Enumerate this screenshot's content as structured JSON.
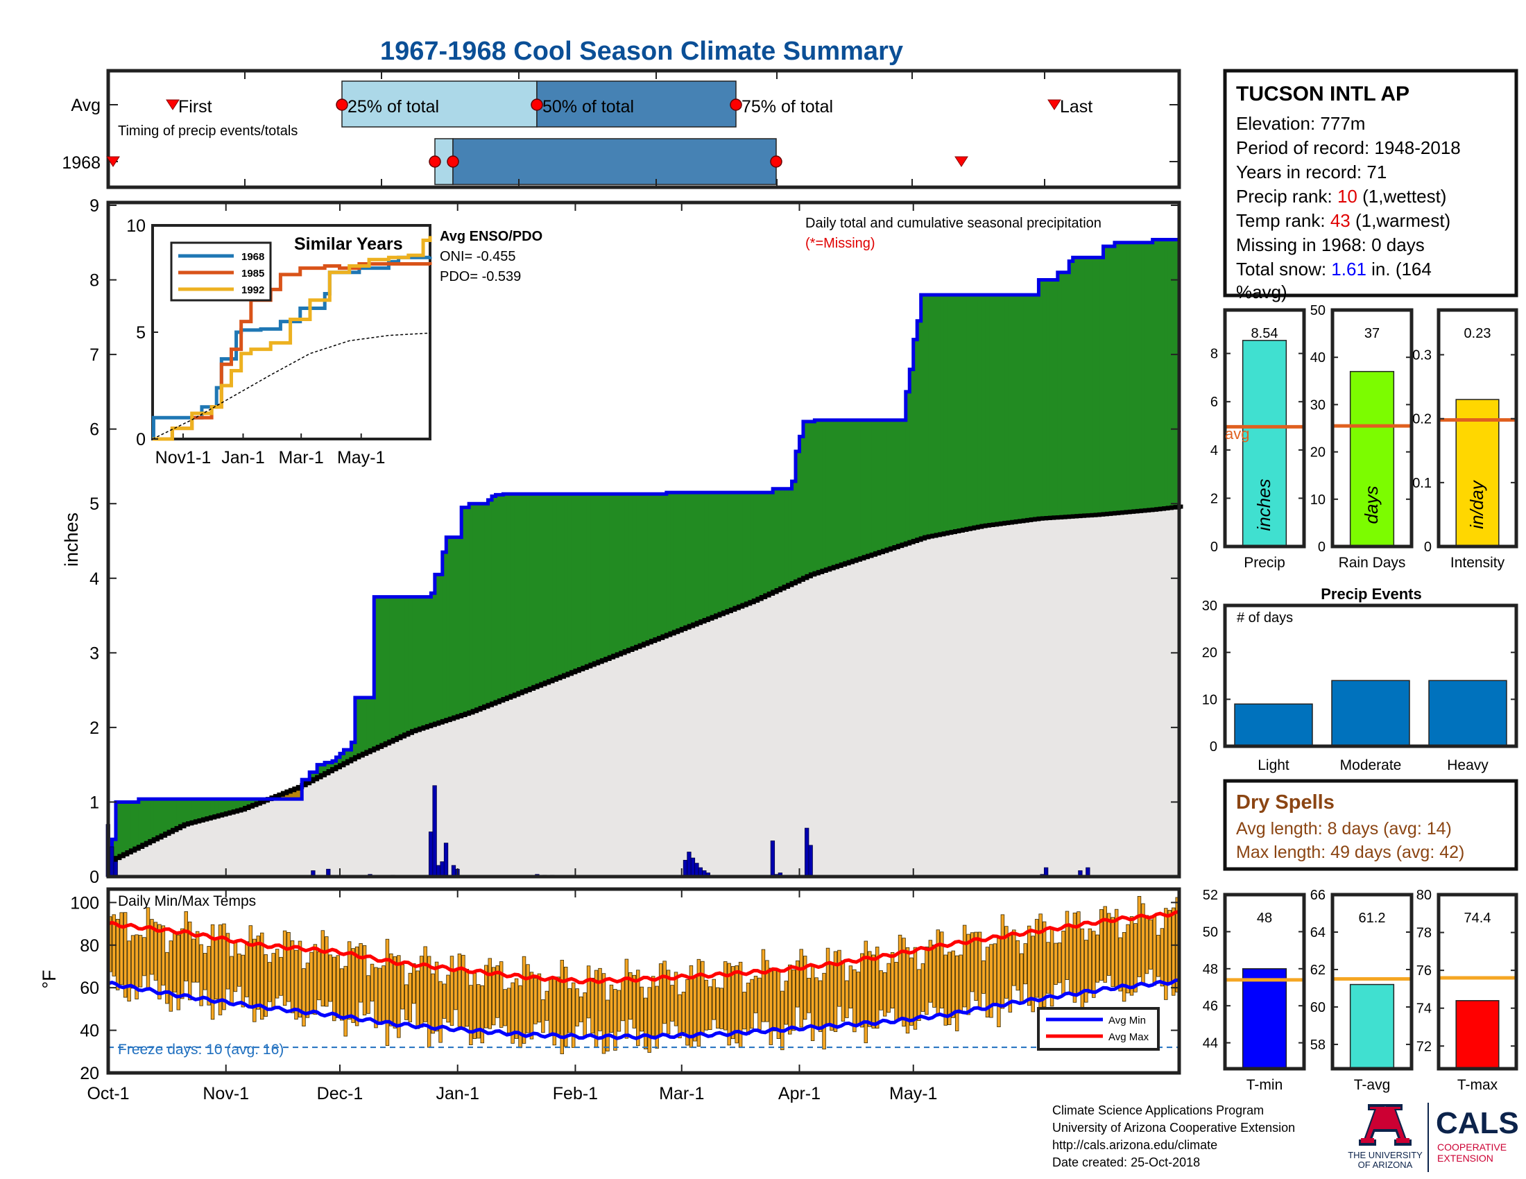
{
  "title": "1967-1968 Cool Season Climate Summary",
  "timing": {
    "row_labels": [
      "Avg",
      "1968"
    ],
    "first_label": "First",
    "last_label": "Last",
    "caption": "Timing of precip events/totals",
    "pct_labels": [
      "25% of total",
      "50% of total",
      "75% of total"
    ]
  },
  "station": {
    "name": "TUCSON INTL AP",
    "elevation": "Elevation: 777m",
    "period": "Period of record: 1948-2018",
    "years": "Years in record: 71",
    "precip_rank_label": "Precip rank: ",
    "precip_rank_value": "10",
    "precip_rank_note": " (1,wettest)",
    "temp_rank_label": "Temp rank: ",
    "temp_rank_value": "43",
    "temp_rank_note": " (1,warmest)",
    "missing": "Missing in 1968: 0 days",
    "snow_label": "Total snow: ",
    "snow_value": "1.61",
    "snow_note": " in. (164",
    "snow_note2": "%avg)"
  },
  "precip_main": {
    "ylabel": "inches",
    "note1": "Daily total and cumulative seasonal precipitation",
    "note2": "(*=Missing)",
    "enso_title": "Avg ENSO/PDO",
    "oni": "ONI= -0.455",
    "pdo": "PDO= -0.539"
  },
  "similar": {
    "title": "Similar Years",
    "legend": [
      "1968",
      "1985",
      "1992"
    ]
  },
  "temps": {
    "caption": "Daily Min/Max Temps",
    "ylabel": "°F",
    "freeze": "Freeze days: 10 (avg. 16)",
    "legend": [
      "Avg Min",
      "Avg Max"
    ]
  },
  "x_ticks": [
    "Oct-1",
    "Nov-1",
    "Dec-1",
    "Jan-1",
    "Feb-1",
    "Mar-1",
    "Apr-1",
    "May-1"
  ],
  "bars_precip": {
    "precip": {
      "value_label": "8.54",
      "inner": "inches",
      "xlabel": "Precip"
    },
    "rain_days": {
      "value_label": "37",
      "inner": "days",
      "xlabel": "Rain Days"
    },
    "intensity": {
      "value_label": "0.23",
      "inner": "in/day",
      "xlabel": "Intensity"
    },
    "avg_label": "avg"
  },
  "events": {
    "title": "Precip Events",
    "ylabel": "# of days"
  },
  "dry_spells": {
    "title": "Dry Spells",
    "avg": "Avg length: 8 days (avg: 14)",
    "max": "Max length: 49 days (avg: 42)"
  },
  "temp_bars": {
    "tmin": {
      "value_label": "48",
      "xlabel": "T-min"
    },
    "tavg": {
      "value_label": "61.2",
      "xlabel": "T-avg"
    },
    "tmax": {
      "value_label": "74.4",
      "xlabel": "T-max"
    }
  },
  "footer": {
    "line1": "Climate Science Applications Program",
    "line2": "University of Arizona Cooperative Extension",
    "line3": "http://cals.arizona.edu/climate",
    "line4": " Date created: 25-Oct-2018"
  },
  "logo": {
    "ua_line1": "THE UNIVERSITY",
    "ua_line2": "OF ARIZONA",
    "cals": "CALS",
    "coop1": "COOPERATIVE",
    "coop2": "EXTENSION"
  },
  "colors": {
    "title": "#0b4f96",
    "cum_1968": "#0000e6",
    "above_avg": "#228b22",
    "below_avg": "#b8860b",
    "avg_fill": "#e8e6e5",
    "daily_bars": "#0000b0",
    "temp_bars": "#f5a623",
    "avg_min": "#0000ff",
    "avg_max": "#ff0000",
    "rank_red": "#e00000",
    "snow_blue": "#0000ff",
    "dry_spells": "#8b4513",
    "avg_line": "#e0601f"
  },
  "chart_data": [
    {
      "type": "area",
      "id": "cumulative_precip",
      "title": "Daily total and cumulative seasonal precipitation",
      "ylabel": "inches",
      "ylim": [
        0,
        9
      ],
      "x_unit": "days since Oct-1",
      "series": [
        {
          "name": "1968",
          "x": [
            0,
            1,
            2,
            8,
            35,
            50,
            51,
            53,
            55,
            57,
            59,
            60,
            61,
            62,
            64,
            65,
            70,
            85,
            86,
            88,
            89,
            93,
            94,
            95,
            100,
            101,
            102,
            103,
            104,
            105,
            106,
            110,
            120,
            145,
            147,
            150,
            158,
            165,
            175,
            180,
            181,
            182,
            183,
            186,
            190,
            195,
            205,
            209,
            210,
            211,
            212,
            213,
            214,
            215,
            240,
            245,
            250,
            252,
            253,
            254,
            262,
            265,
            271,
            275,
            282
          ],
          "values": [
            0.05,
            0.5,
            1.0,
            1.04,
            1.04,
            1.04,
            1.3,
            1.4,
            1.5,
            1.53,
            1.55,
            1.6,
            1.65,
            1.7,
            1.8,
            2.4,
            3.75,
            3.8,
            4.05,
            4.35,
            4.55,
            4.95,
            4.95,
            5.0,
            5.05,
            5.1,
            5.12,
            5.12,
            5.13,
            5.13,
            5.13,
            5.13,
            5.13,
            5.13,
            5.15,
            5.15,
            5.15,
            5.15,
            5.2,
            5.3,
            5.7,
            5.9,
            6.1,
            6.12,
            6.12,
            6.12,
            6.12,
            6.12,
            6.5,
            6.8,
            7.2,
            7.45,
            7.8,
            7.8,
            7.8,
            8.0,
            8.1,
            8.1,
            8.25,
            8.3,
            8.45,
            8.5,
            8.5,
            8.54,
            8.54
          ]
        },
        {
          "name": "Avg",
          "x": [
            0,
            8,
            20,
            35,
            50,
            65,
            80,
            95,
            110,
            125,
            140,
            155,
            170,
            185,
            200,
            215,
            230,
            245,
            260,
            275,
            282
          ],
          "values": [
            0.2,
            0.4,
            0.7,
            0.9,
            1.2,
            1.6,
            1.95,
            2.2,
            2.5,
            2.8,
            3.1,
            3.4,
            3.7,
            4.05,
            4.3,
            4.55,
            4.7,
            4.8,
            4.85,
            4.92,
            4.96
          ]
        }
      ],
      "daily": {
        "x": [
          0,
          1,
          2,
          54,
          58,
          69,
          75,
          85,
          86,
          87,
          88,
          89,
          91,
          92,
          113,
          115,
          117,
          152,
          153,
          154,
          155,
          156,
          157,
          158,
          175,
          176,
          177,
          184,
          185,
          246,
          247,
          256,
          258
        ],
        "values": [
          0.7,
          0.4,
          0.2,
          0.08,
          0.1,
          0.03,
          0.02,
          0.6,
          1.22,
          0.15,
          0.2,
          0.45,
          0.15,
          0.1,
          0.03,
          0.02,
          0.02,
          0.22,
          0.33,
          0.25,
          0.18,
          0.12,
          0.08,
          0.05,
          0.48,
          0.03,
          0.05,
          0.65,
          0.42,
          0.03,
          0.12,
          0.08,
          0.12
        ]
      }
    },
    {
      "type": "line",
      "id": "similar_years",
      "title": "Similar Years",
      "ylim": [
        0,
        10
      ],
      "x_unit": "days since Oct-1",
      "x_ticks": [
        "Nov1-1",
        "Jan-1",
        "Mar-1",
        "May-1"
      ],
      "series": [
        {
          "name": "1968",
          "x": [
            0,
            1,
            2,
            50,
            65,
            70,
            85,
            90,
            110,
            130,
            150,
            175,
            180,
            210,
            240,
            250,
            282
          ],
          "values": [
            0.05,
            1.0,
            1.0,
            1.5,
            2.4,
            3.75,
            5.0,
            5.1,
            5.15,
            5.5,
            6.12,
            6.8,
            7.8,
            8.0,
            8.3,
            8.5,
            8.54
          ]
        },
        {
          "name": "1985",
          "x": [
            0,
            20,
            40,
            60,
            70,
            80,
            90,
            100,
            120,
            130,
            150,
            175,
            190,
            210,
            240,
            282
          ],
          "values": [
            0,
            0.5,
            1.0,
            1.5,
            3.5,
            4.2,
            5.5,
            6.5,
            7.0,
            7.7,
            8.0,
            8.1,
            8.0,
            8.2,
            8.2,
            8.15
          ]
        },
        {
          "name": "1992",
          "x": [
            0,
            20,
            40,
            60,
            70,
            80,
            90,
            100,
            120,
            140,
            160,
            180,
            200,
            220,
            240,
            260,
            275,
            282
          ],
          "values": [
            0,
            0.5,
            1.2,
            1.5,
            2.5,
            3.2,
            4.0,
            4.2,
            4.5,
            5.6,
            6.5,
            7.8,
            8.1,
            8.4,
            8.5,
            8.6,
            9.3,
            9.5
          ]
        },
        {
          "name": "Avg",
          "x": [
            0,
            40,
            80,
            120,
            160,
            200,
            240,
            282
          ],
          "values": [
            0,
            0.9,
            1.95,
            3.0,
            4.0,
            4.6,
            4.85,
            4.96
          ]
        }
      ]
    },
    {
      "type": "bar",
      "id": "daily_temps",
      "title": "Daily Min/Max Temps",
      "ylabel": "°F",
      "ylim": [
        20,
        105
      ],
      "x_unit": "days since Oct-1",
      "freeze_line": 32,
      "series": [
        {
          "name": "Avg Max",
          "x": [
            0,
            20,
            40,
            60,
            75,
            95,
            110,
            125,
            140,
            160,
            175,
            190,
            205,
            220,
            235,
            250,
            265,
            282
          ],
          "values": [
            90,
            86,
            80,
            77,
            72,
            68,
            65,
            63,
            64,
            66,
            68,
            71,
            75,
            80,
            84,
            88,
            92,
            95
          ]
        },
        {
          "name": "Avg Min",
          "x": [
            0,
            20,
            40,
            60,
            75,
            95,
            110,
            125,
            140,
            160,
            175,
            190,
            205,
            220,
            235,
            250,
            265,
            282
          ],
          "values": [
            62,
            56,
            51,
            47,
            43,
            40,
            38,
            37,
            37,
            38,
            40,
            42,
            44,
            47,
            52,
            56,
            60,
            63
          ]
        }
      ]
    },
    {
      "type": "bar",
      "id": "precip_totals",
      "categories": [
        "Precip",
        "Rain Days",
        "Intensity"
      ],
      "values": [
        8.54,
        37,
        0.23
      ],
      "averages": [
        4.96,
        25.5,
        0.198
      ],
      "ylims": [
        [
          0,
          9.8
        ],
        [
          0,
          50
        ],
        [
          0,
          0.37
        ]
      ]
    },
    {
      "type": "bar",
      "id": "precip_events",
      "title": "Precip Events",
      "ylabel": "# of days",
      "categories": [
        "Light",
        "Moderate",
        "Heavy"
      ],
      "values": [
        9,
        14,
        14
      ],
      "ylim": [
        0,
        30
      ]
    },
    {
      "type": "bar",
      "id": "temp_totals",
      "categories": [
        "T-min",
        "T-avg",
        "T-max"
      ],
      "values": [
        48,
        61.2,
        74.4
      ],
      "averages": [
        47.4,
        61.5,
        75.6
      ],
      "ylims": [
        [
          42.6,
          52
        ],
        [
          56.7,
          66
        ],
        [
          70.8,
          80
        ]
      ]
    }
  ]
}
